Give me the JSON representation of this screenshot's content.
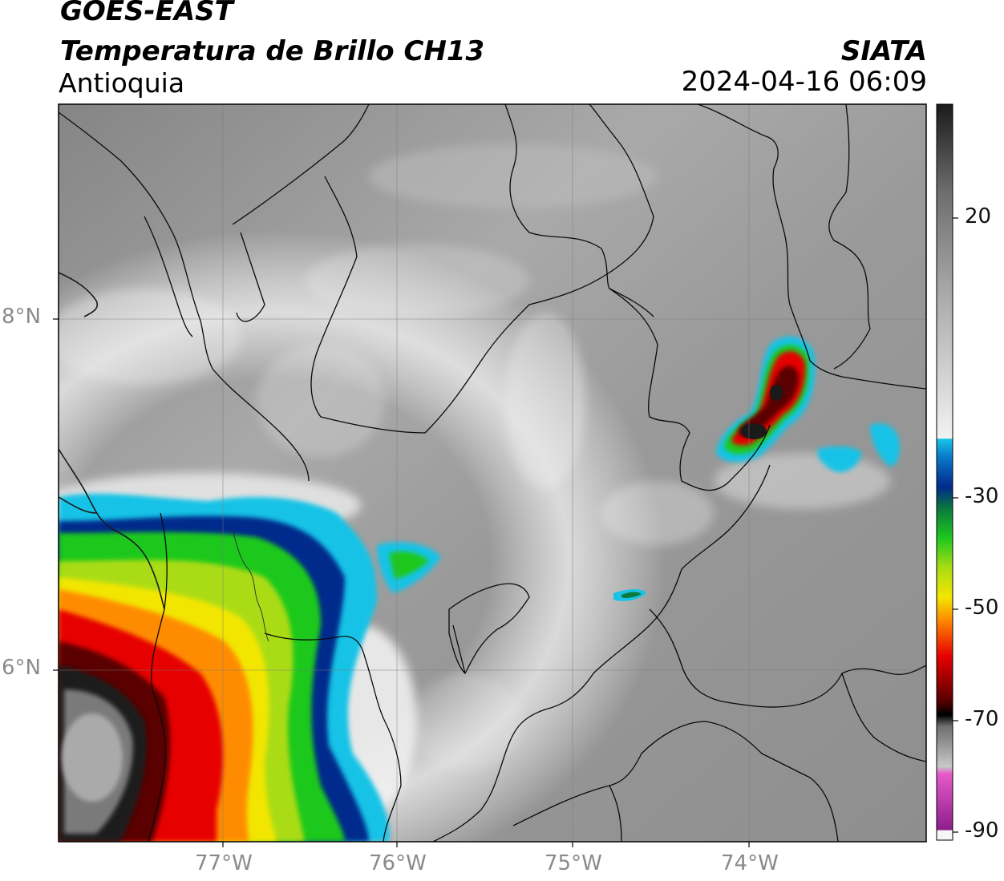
{
  "header": {
    "satellite": "GOES-EAST",
    "product": "Temperatura de Brillo CH13",
    "region": "Antioquia",
    "organization": "SIATA",
    "datetime": "2024-04-16 06:09"
  },
  "map": {
    "lat_ticks": [
      "8°N",
      "6°N"
    ],
    "lon_ticks": [
      "77°W",
      "76°W",
      "75°W",
      "74°W"
    ]
  },
  "colorbar": {
    "labels": [
      "20",
      "-30",
      "-50",
      "-70",
      "-90"
    ],
    "colors": {
      "warm_dark": "#1a1a1a",
      "warm_light": "#f2f2f2",
      "cyan": "#19c3e6",
      "blue": "#002a8c",
      "green": "#1ec81e",
      "yellow": "#f2e600",
      "orange": "#ff8c00",
      "red": "#e60000",
      "dark_red": "#5a0000",
      "black": "#000000",
      "grey": "#a0a0a0",
      "pink": "#e65ac8",
      "purple": "#8c1e8c"
    }
  }
}
